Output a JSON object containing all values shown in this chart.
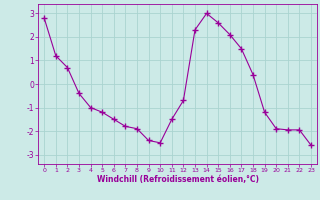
{
  "x": [
    0,
    1,
    2,
    3,
    4,
    5,
    6,
    7,
    8,
    9,
    10,
    11,
    12,
    13,
    14,
    15,
    16,
    17,
    18,
    19,
    20,
    21,
    22,
    23
  ],
  "y": [
    2.8,
    1.2,
    0.7,
    -0.4,
    -1.0,
    -1.2,
    -1.5,
    -1.8,
    -1.9,
    -2.4,
    -2.5,
    -1.5,
    -0.7,
    2.3,
    3.0,
    2.6,
    2.1,
    1.5,
    0.4,
    -1.2,
    -1.9,
    -1.95,
    -1.95,
    -2.6
  ],
  "line_color": "#990099",
  "marker": "+",
  "marker_size": 4,
  "bg_color": "#cceae7",
  "grid_color": "#aad4d0",
  "xlabel": "Windchill (Refroidissement éolien,°C)",
  "xlabel_color": "#990099",
  "tick_color": "#990099",
  "label_fontsize": 5.5,
  "xlabel_fontsize": 5.5,
  "ylim": [
    -3.4,
    3.4
  ],
  "xlim": [
    -0.5,
    23.5
  ],
  "yticks": [
    -3,
    -2,
    -1,
    0,
    1,
    2,
    3
  ],
  "xticks": [
    0,
    1,
    2,
    3,
    4,
    5,
    6,
    7,
    8,
    9,
    10,
    11,
    12,
    13,
    14,
    15,
    16,
    17,
    18,
    19,
    20,
    21,
    22,
    23
  ]
}
